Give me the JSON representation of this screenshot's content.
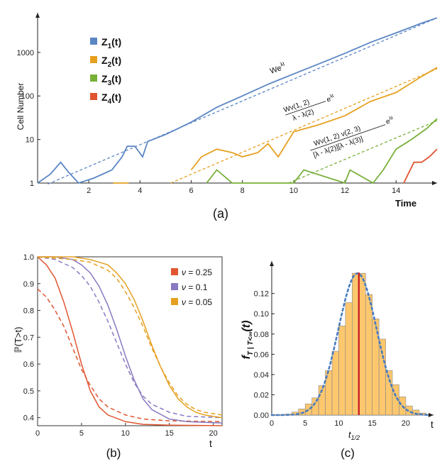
{
  "chart_data": [
    {
      "type": "line",
      "panel": "(a)",
      "scale": "log-y",
      "xlabel": "Time",
      "ylabel": "Cell Number",
      "xlim": [
        0,
        15.6
      ],
      "ylim": [
        1,
        7000
      ],
      "x_ticks": [
        "2",
        "4",
        "6",
        "8",
        "10",
        "12",
        "14"
      ],
      "y_ticks": [
        "1",
        "10",
        "100",
        "1000"
      ],
      "legend": [
        "Z",
        "Z",
        "Z",
        "Z"
      ],
      "legend_sub": [
        "1",
        "2",
        "3",
        "4"
      ],
      "legend_tail": "(t)",
      "colors": [
        "#5b86c4",
        "#e6a020",
        "#78b038",
        "#e05530"
      ],
      "annotations": {
        "fit1": "We",
        "fit1_sup": "λt",
        "fit2_num": "Wν(1, 2)",
        "fit2_sup": "λt",
        "fit2_den": "λ - λ(2)",
        "fit3_num": "Wν(1, 2) ν(2, 3)",
        "fit3_sup": "λt",
        "fit3_den": "[λ - λ(2)][λ - λ(3)]"
      },
      "series": [
        {
          "name": "Z1(t)",
          "x": [
            0,
            0.5,
            0.9,
            1.2,
            1.6,
            2.2,
            2.9,
            3.3,
            3.5,
            3.8,
            4.1,
            4.3,
            5,
            6,
            7,
            8,
            9,
            10,
            11,
            12,
            13,
            14,
            15,
            15.6
          ],
          "y": [
            1,
            1.6,
            3,
            1.8,
            1,
            1.3,
            2,
            4,
            7,
            7,
            4,
            9,
            13,
            25,
            55,
            100,
            185,
            320,
            550,
            950,
            1700,
            2800,
            4700,
            6200
          ]
        },
        {
          "name": "fit Z1",
          "x": [
            0.4,
            15.6
          ],
          "y": [
            0.95,
            6200
          ]
        },
        {
          "name": "Z2(t)",
          "x": [
            6,
            6.4,
            7,
            7.6,
            8,
            8.6,
            9,
            9.4,
            10,
            11,
            12,
            13,
            14,
            15,
            15.6
          ],
          "y": [
            2,
            4,
            6,
            5,
            4,
            5,
            8,
            4,
            15,
            22,
            35,
            75,
            120,
            280,
            450
          ]
        },
        {
          "name": "fit Z2",
          "x": [
            5.2,
            15.6
          ],
          "y": [
            1,
            420
          ]
        },
        {
          "name": "Z3(t)",
          "x": [
            6.6,
            7,
            7.6,
            10,
            10.4,
            12,
            12.2,
            13.1,
            13.5,
            14,
            14.6,
            15.2,
            15.6
          ],
          "y": [
            1,
            2,
            1,
            1,
            2,
            1,
            2,
            1,
            2,
            6,
            10,
            18,
            30
          ]
        },
        {
          "name": "fit Z3",
          "x": [
            9.8,
            15.6
          ],
          "y": [
            1,
            27
          ]
        },
        {
          "name": "Z4(t)",
          "x": [
            14.3,
            14.7,
            15,
            15.3,
            15.6
          ],
          "y": [
            1,
            3,
            3,
            4,
            6
          ]
        }
      ]
    },
    {
      "type": "line",
      "panel": "(b)",
      "xlabel": "t",
      "ylabel": "ℙ(T>t)",
      "xlim": [
        0,
        21
      ],
      "ylim": [
        0.37,
        1.0
      ],
      "x_ticks": [
        "0",
        "5",
        "10",
        "15",
        "20"
      ],
      "y_ticks": [
        "0.4",
        "0.5",
        "0.6",
        "0.7",
        "0.8",
        "0.9",
        "1.0"
      ],
      "legend_prefix": "ν",
      "legend": [
        "0.25",
        "0.1",
        "0.05"
      ],
      "colors": [
        "#e05530",
        "#8a78c0",
        "#e6a020"
      ],
      "series": [
        {
          "name": "ν = 0.25",
          "x": [
            0,
            1,
            2,
            3,
            4,
            5,
            6,
            7,
            8,
            10,
            12,
            15,
            21
          ],
          "y": [
            1.0,
            0.97,
            0.92,
            0.83,
            0.72,
            0.6,
            0.5,
            0.44,
            0.41,
            0.385,
            0.375,
            0.372,
            0.37
          ]
        },
        {
          "name": "ν = 0.25 fit",
          "x": [
            0,
            1,
            2,
            3,
            4,
            5,
            6,
            7,
            8,
            10,
            12,
            15,
            21
          ],
          "y": [
            0.88,
            0.85,
            0.8,
            0.74,
            0.66,
            0.58,
            0.52,
            0.47,
            0.44,
            0.41,
            0.395,
            0.388,
            0.385
          ]
        },
        {
          "name": "ν = 0.1",
          "x": [
            0,
            2,
            4,
            5,
            6,
            7,
            8,
            9,
            10,
            11,
            12,
            13,
            15,
            17,
            21
          ],
          "y": [
            1.0,
            1.0,
            0.99,
            0.97,
            0.94,
            0.89,
            0.82,
            0.73,
            0.63,
            0.54,
            0.47,
            0.43,
            0.395,
            0.385,
            0.38
          ]
        },
        {
          "name": "ν = 0.1 fit",
          "x": [
            0,
            2,
            4,
            5,
            6,
            7,
            8,
            9,
            10,
            11,
            12,
            13,
            15,
            17,
            21
          ],
          "y": [
            1.0,
            0.99,
            0.96,
            0.93,
            0.89,
            0.83,
            0.76,
            0.68,
            0.6,
            0.53,
            0.48,
            0.45,
            0.42,
            0.405,
            0.4
          ]
        },
        {
          "name": "ν = 0.05",
          "x": [
            0,
            4,
            6,
            8,
            9,
            10,
            11,
            12,
            13,
            14,
            15,
            16,
            17,
            18,
            19,
            21
          ],
          "y": [
            1.0,
            1.0,
            0.99,
            0.97,
            0.94,
            0.9,
            0.84,
            0.76,
            0.67,
            0.59,
            0.52,
            0.47,
            0.44,
            0.42,
            0.41,
            0.4
          ]
        },
        {
          "name": "ν = 0.05 fit",
          "x": [
            0,
            4,
            6,
            8,
            9,
            10,
            11,
            12,
            13,
            14,
            15,
            16,
            17,
            18,
            19,
            21
          ],
          "y": [
            1.0,
            0.99,
            0.98,
            0.95,
            0.92,
            0.87,
            0.81,
            0.74,
            0.66,
            0.59,
            0.53,
            0.48,
            0.45,
            0.43,
            0.42,
            0.41
          ]
        }
      ]
    },
    {
      "type": "bar",
      "panel": "(c)",
      "ylabel": "f",
      "ylabel_sub": "T | T<∞",
      "ylabel_tail": "(t)",
      "xlabel": "t",
      "xlim": [
        0,
        23.5
      ],
      "ylim": [
        0,
        0.145
      ],
      "x_ticks": [
        "0",
        "5",
        "10",
        "15",
        "20"
      ],
      "y_ticks": [
        "0.00",
        "0.02",
        "0.04",
        "0.06",
        "0.08",
        "0.10",
        "0.12"
      ],
      "median_label": "t",
      "median_sub": "1/2",
      "median": 13,
      "bin_width": 1,
      "bin_starts": [
        2,
        3,
        4,
        5,
        6,
        7,
        8,
        9,
        10,
        11,
        12,
        13,
        14,
        15,
        16,
        17,
        18,
        19,
        20,
        21,
        22
      ],
      "values": [
        0.001,
        0.003,
        0.006,
        0.011,
        0.017,
        0.029,
        0.044,
        0.063,
        0.088,
        0.111,
        0.14,
        0.14,
        0.119,
        0.095,
        0.075,
        0.044,
        0.03,
        0.018,
        0.009,
        0.005,
        0.002
      ],
      "fit": {
        "mean": 12.8,
        "sd": 2.85,
        "peak": 0.14
      },
      "colors": {
        "bar": "#fdc76e",
        "edge": "#888888",
        "fit": "#4a7cc0",
        "median": "#cc2222"
      }
    }
  ],
  "panel_labels": [
    "(a)",
    "(b)",
    "(c)"
  ]
}
